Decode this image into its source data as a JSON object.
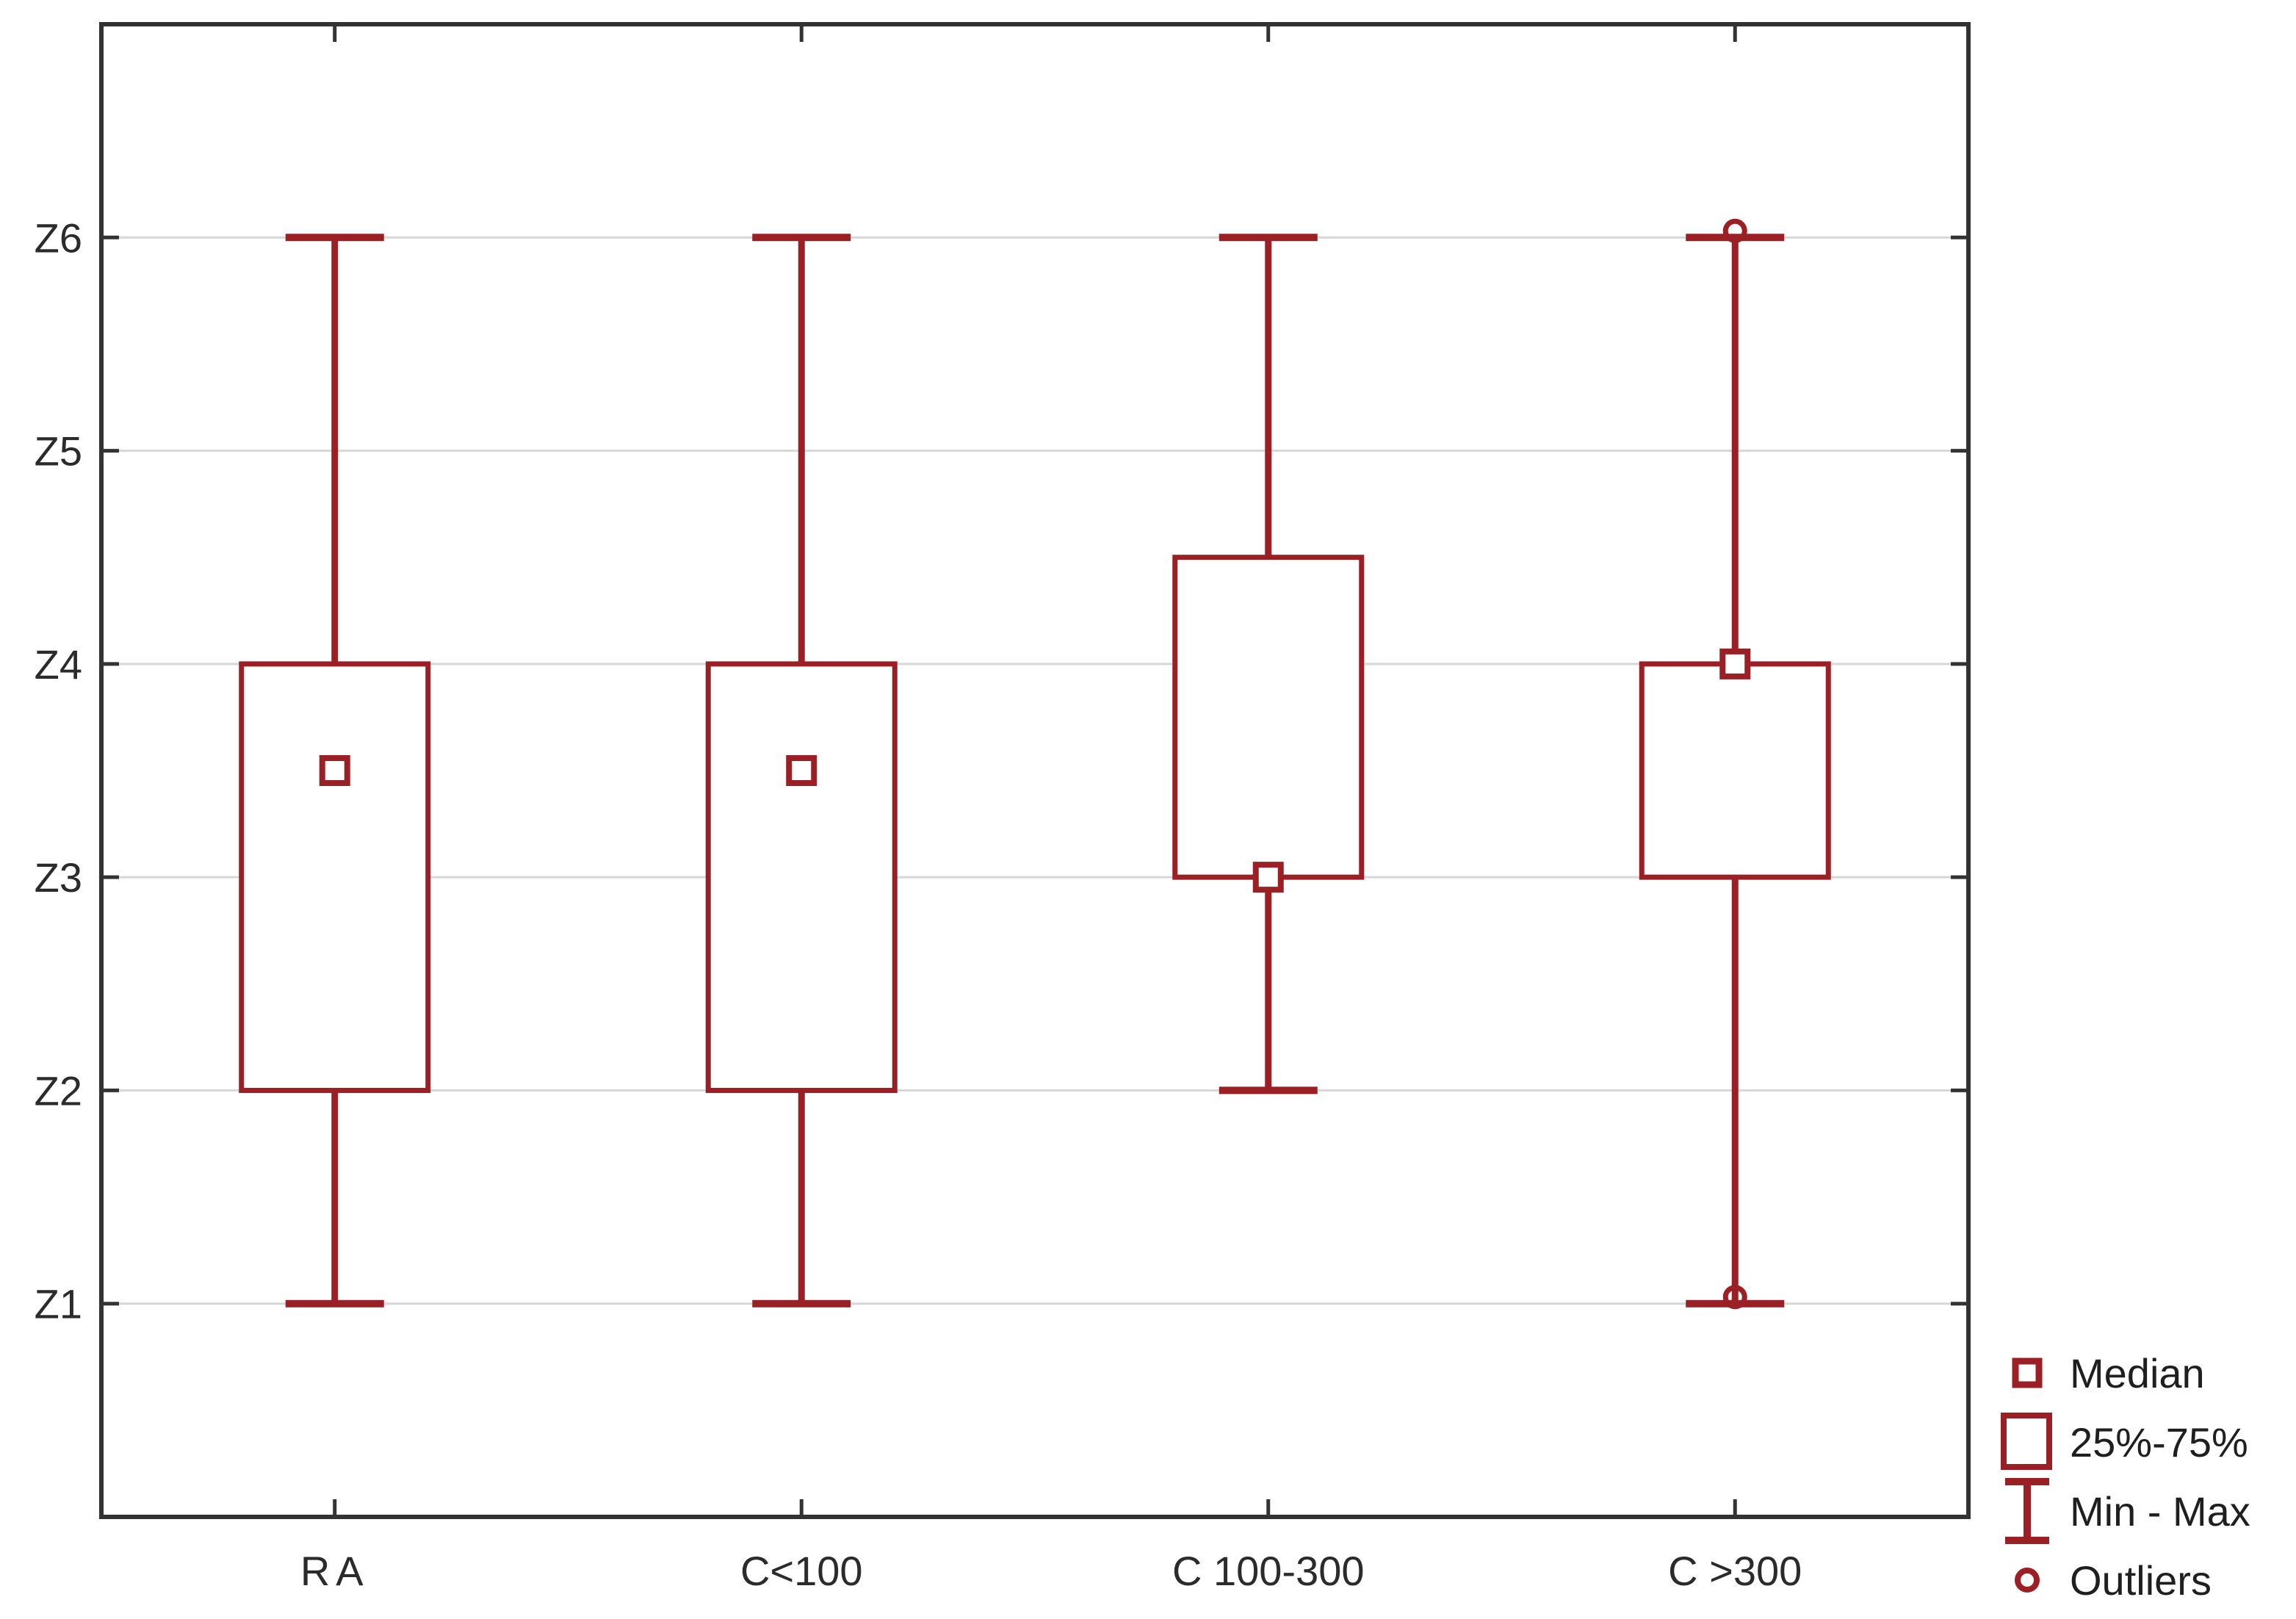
{
  "chart_data": {
    "type": "box",
    "title": "",
    "xlabel": "",
    "ylabel": "",
    "categories": [
      "RA",
      "C<100",
      "C 100-300",
      "C >300"
    ],
    "y_ticks": [
      {
        "value": 1,
        "label": "Z1"
      },
      {
        "value": 2,
        "label": "Z2"
      },
      {
        "value": 3,
        "label": "Z3"
      },
      {
        "value": 4,
        "label": "Z4"
      },
      {
        "value": 5,
        "label": "Z5"
      },
      {
        "value": 6,
        "label": "Z6"
      }
    ],
    "ylim": [
      0,
      7
    ],
    "grid": "horizontal",
    "boxes": [
      {
        "category": "RA",
        "min": 1,
        "q1": 2,
        "median": 3.5,
        "q3": 4,
        "max": 6,
        "outliers": []
      },
      {
        "category": "C<100",
        "min": 1,
        "q1": 2,
        "median": 3.5,
        "q3": 4,
        "max": 6,
        "outliers": []
      },
      {
        "category": "C 100-300",
        "min": 2,
        "q1": 3,
        "median": 3,
        "q3": 4.5,
        "max": 6,
        "outliers": []
      },
      {
        "category": "C >300",
        "min": 1,
        "q1": 3,
        "median": 4,
        "q3": 4,
        "max": 6,
        "outliers": [
          6,
          1
        ]
      }
    ],
    "legend_position": "bottom-right-outside",
    "colors": {
      "series": "#9a2026",
      "grid": "#d7d7d7",
      "axis": "#333333",
      "text": "#2b2b2b"
    }
  },
  "legend": {
    "items": [
      {
        "marker": "median-square",
        "label": "Median"
      },
      {
        "marker": "iqr-box",
        "label": "25%-75%"
      },
      {
        "marker": "min-max-whisker",
        "label": "Min - Max"
      },
      {
        "marker": "outlier-circle",
        "label": "Outliers"
      }
    ]
  }
}
